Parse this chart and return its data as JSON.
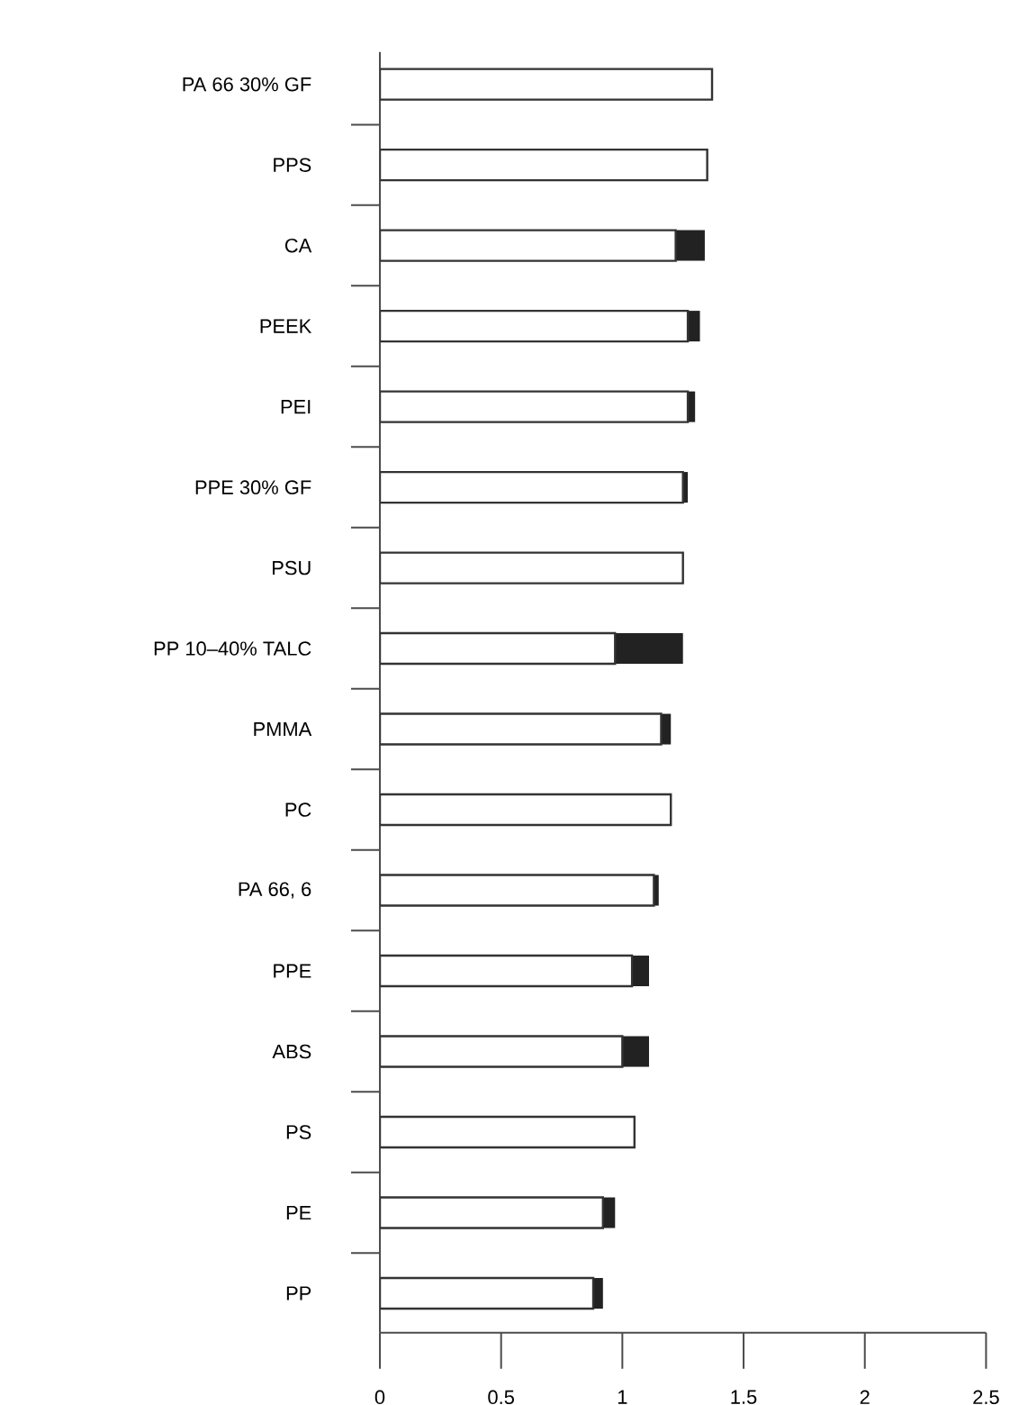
{
  "chart_data": {
    "type": "bar",
    "orientation": "horizontal",
    "stacked": true,
    "categories": [
      "PA 66 30% GF",
      "PPS",
      "CA",
      "PEEK",
      "PEI",
      "PPE 30% GF",
      "PSU",
      "PP 10–40% TALC",
      "PMMA",
      "PC",
      "PA 66, 6",
      "PPE",
      "ABS",
      "PS",
      "PE",
      "PP"
    ],
    "series": [
      {
        "color": "#ffffff",
        "values": [
          1.37,
          1.35,
          1.22,
          1.27,
          1.27,
          1.25,
          1.25,
          0.97,
          1.16,
          1.2,
          1.13,
          1.04,
          1.0,
          1.05,
          0.92,
          0.88
        ]
      },
      {
        "color": "#222222",
        "values": [
          null,
          null,
          0.12,
          0.05,
          0.03,
          0.02,
          null,
          0.28,
          0.04,
          null,
          0.02,
          0.07,
          0.11,
          null,
          0.05,
          0.04
        ]
      }
    ],
    "xlim": [
      0,
      2.5
    ],
    "xticks": [
      0,
      0.5,
      1,
      1.5,
      2,
      2.5
    ],
    "grid": false
  }
}
